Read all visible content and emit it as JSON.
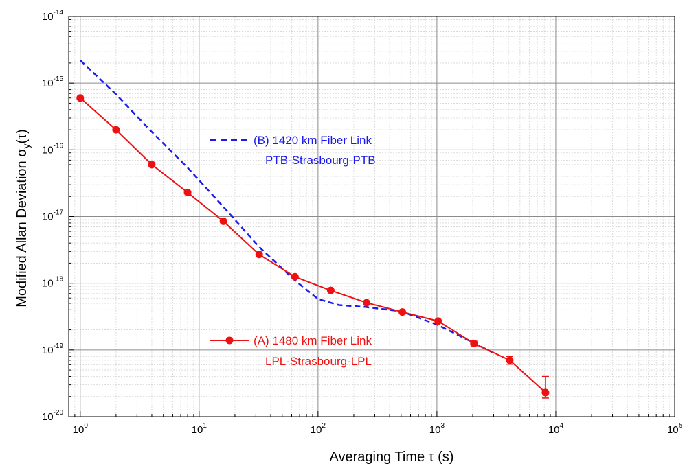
{
  "chart_data": {
    "type": "line",
    "xlabel": "Averaging Time τ (s)",
    "ylabel": "Modified Allan Deviation σ",
    "ylabel_sub": "y",
    "ylabel_tail": "(τ)",
    "x_scale": "log",
    "y_scale": "log",
    "xlim": [
      0.8,
      100000
    ],
    "ylim": [
      1e-20,
      1e-14
    ],
    "x_ticks": [
      {
        "base": "10",
        "exp": "0",
        "value": 1
      },
      {
        "base": "10",
        "exp": "1",
        "value": 10
      },
      {
        "base": "10",
        "exp": "2",
        "value": 100
      },
      {
        "base": "10",
        "exp": "3",
        "value": 1000
      },
      {
        "base": "10",
        "exp": "4",
        "value": 10000
      },
      {
        "base": "10",
        "exp": "5",
        "value": 100000
      }
    ],
    "y_ticks": [
      {
        "base": "10",
        "exp": "-14",
        "value": 1e-14
      },
      {
        "base": "10",
        "exp": "-15",
        "value": 1e-15
      },
      {
        "base": "10",
        "exp": "-16",
        "value": 1e-16
      },
      {
        "base": "10",
        "exp": "-17",
        "value": 1e-17
      },
      {
        "base": "10",
        "exp": "-18",
        "value": 1e-18
      },
      {
        "base": "10",
        "exp": "-19",
        "value": 1e-19
      },
      {
        "base": "10",
        "exp": "-20",
        "value": 1e-20
      }
    ],
    "grid": true,
    "series": [
      {
        "name": "(A) 1480 km Fiber Link",
        "subtitle": "LPL-Strasbourg-LPL",
        "color": "#ee1111",
        "style": "solid-markers",
        "x": [
          1,
          2,
          4,
          8,
          16,
          32,
          64,
          128,
          256,
          512,
          1024,
          2048,
          4096,
          8192
        ],
        "y": [
          6e-16,
          2e-16,
          6e-17,
          2.3e-17,
          8.5e-18,
          2.7e-18,
          1.25e-18,
          7.8e-19,
          5.1e-19,
          3.7e-19,
          2.7e-19,
          1.25e-19,
          7e-20,
          2.3e-20
        ],
        "error_low": [
          null,
          null,
          null,
          null,
          null,
          null,
          null,
          null,
          null,
          null,
          null,
          1.15e-19,
          6.1e-20,
          1.9e-20
        ],
        "error_high": [
          null,
          null,
          null,
          null,
          null,
          null,
          null,
          null,
          null,
          null,
          null,
          1.35e-19,
          8e-20,
          4e-20
        ]
      },
      {
        "name": "(B) 1420 km Fiber Link",
        "subtitle": "PTB-Strasbourg-PTB",
        "color": "#1a1aee",
        "style": "dashed",
        "x": [
          1,
          2,
          4,
          8,
          16,
          32,
          64,
          100,
          150,
          250,
          500,
          1000,
          2000,
          3000
        ],
        "y": [
          2.2e-15,
          6.8e-16,
          1.85e-16,
          5.4e-17,
          1.4e-17,
          3.5e-18,
          1.1e-18,
          5.8e-19,
          4.7e-19,
          4.4e-19,
          3.8e-19,
          2.4e-19,
          1.3e-19,
          9e-20
        ]
      }
    ]
  }
}
